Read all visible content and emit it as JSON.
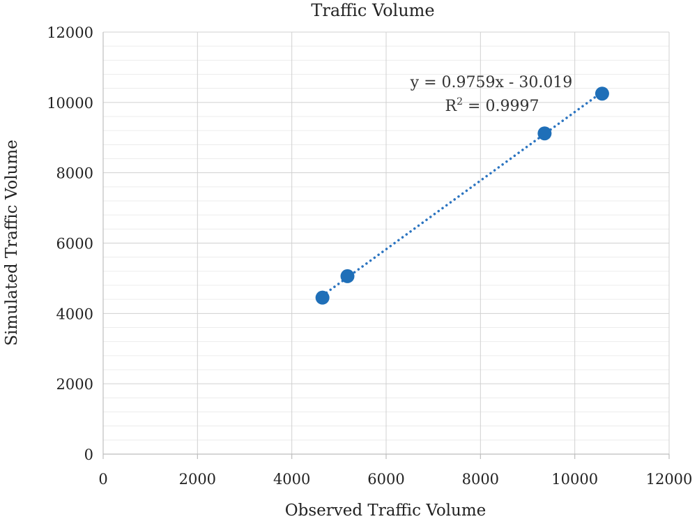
{
  "chart_data": {
    "type": "scatter",
    "title": "Traffic Volume",
    "xlabel": "Observed Traffic Volume",
    "ylabel": "Simulated Traffic Volume",
    "xlim": [
      0,
      12000
    ],
    "ylim": [
      0,
      12000
    ],
    "x_ticks": [
      "0",
      "2000",
      "4000",
      "6000",
      "8000",
      "10000",
      "12000"
    ],
    "y_ticks": [
      "0",
      "2000",
      "4000",
      "6000",
      "8000",
      "10000",
      "12000"
    ],
    "grid": true,
    "series": [
      {
        "name": "Traffic Volume",
        "x": [
          4650,
          5180,
          9360,
          10580
        ],
        "y": [
          4450,
          5060,
          9120,
          10250
        ]
      }
    ],
    "trendline": {
      "type": "linear",
      "slope": 0.9759,
      "intercept": -30.019,
      "x_range": [
        4650,
        10580
      ],
      "style": "dotted"
    },
    "annotations": {
      "equation": "y = 0.9759x - 30.019",
      "r2_prefix": "R",
      "r2_sup": "2",
      "r2_suffix": " = 0.9997"
    },
    "colors": {
      "marker": "#1f6fb8",
      "trendline": "#2b74c0",
      "grid_major": "#d0d0d0",
      "grid_minor": "#ececec",
      "axis": "#bdbdbd"
    }
  }
}
